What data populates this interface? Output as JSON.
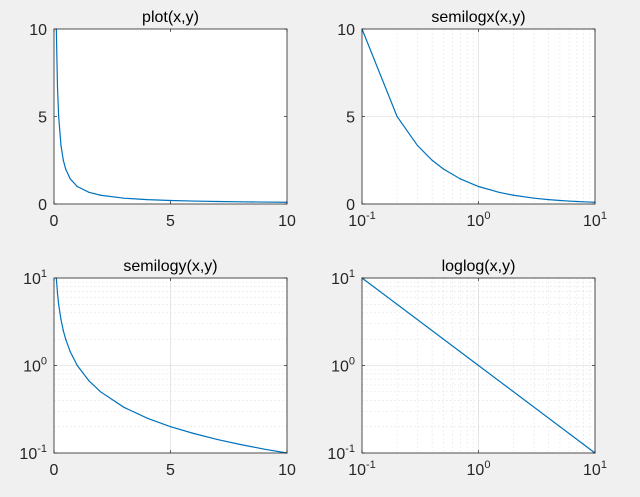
{
  "chart_data": [
    {
      "type": "line",
      "title": "plot(x,y)",
      "xscale": "linear",
      "yscale": "linear",
      "grid": false,
      "xlim": [
        0,
        10
      ],
      "ylim": [
        0,
        10
      ],
      "xticks": [
        {
          "base": "0"
        },
        {
          "base": "5"
        },
        {
          "base": "10"
        }
      ],
      "xtick_values": [
        0,
        5,
        10
      ],
      "yticks": [
        {
          "base": "0"
        },
        {
          "base": "5"
        },
        {
          "base": "10"
        }
      ],
      "ytick_values": [
        0,
        5,
        10
      ],
      "color": "#0072bd",
      "series": [
        {
          "function": "y = 1/x",
          "x": [
            0.1,
            0.15,
            0.2,
            0.3,
            0.4,
            0.5,
            0.7,
            1,
            1.5,
            2,
            3,
            4,
            5,
            6,
            7,
            8,
            9,
            10
          ],
          "y": [
            10,
            6.667,
            5,
            3.333,
            2.5,
            2,
            1.429,
            1,
            0.667,
            0.5,
            0.333,
            0.25,
            0.2,
            0.167,
            0.143,
            0.125,
            0.111,
            0.1
          ]
        }
      ]
    },
    {
      "type": "line",
      "title": "semilogx(x,y)",
      "xscale": "log",
      "yscale": "linear",
      "grid": true,
      "xlim": [
        0.1,
        10
      ],
      "ylim": [
        0,
        10
      ],
      "xticks": [
        {
          "base": "10",
          "exp": "-1"
        },
        {
          "base": "10",
          "exp": "0"
        },
        {
          "base": "10",
          "exp": "1"
        }
      ],
      "xtick_values": [
        0.1,
        1,
        10
      ],
      "yticks": [
        {
          "base": "0"
        },
        {
          "base": "5"
        },
        {
          "base": "10"
        }
      ],
      "ytick_values": [
        0,
        5,
        10
      ],
      "color": "#0072bd",
      "series": [
        {
          "function": "y = 1/x",
          "x": [
            0.1,
            0.2,
            0.3,
            0.4,
            0.5,
            0.7,
            1,
            1.5,
            2,
            3,
            4,
            5,
            6,
            7,
            8,
            9,
            10
          ],
          "y": [
            10,
            5,
            3.333,
            2.5,
            2,
            1.429,
            1,
            0.667,
            0.5,
            0.333,
            0.25,
            0.2,
            0.167,
            0.143,
            0.125,
            0.111,
            0.1
          ]
        }
      ]
    },
    {
      "type": "line",
      "title": "semilogy(x,y)",
      "xscale": "linear",
      "yscale": "log",
      "grid": true,
      "xlim": [
        0,
        10
      ],
      "ylim": [
        0.1,
        10
      ],
      "xticks": [
        {
          "base": "0"
        },
        {
          "base": "5"
        },
        {
          "base": "10"
        }
      ],
      "xtick_values": [
        0,
        5,
        10
      ],
      "yticks": [
        {
          "base": "10",
          "exp": "-1"
        },
        {
          "base": "10",
          "exp": "0"
        },
        {
          "base": "10",
          "exp": "1"
        }
      ],
      "ytick_values": [
        0.1,
        1,
        10
      ],
      "color": "#0072bd",
      "series": [
        {
          "function": "y = 1/x",
          "x": [
            0.1,
            0.15,
            0.2,
            0.3,
            0.4,
            0.5,
            0.7,
            1,
            1.5,
            2,
            3,
            4,
            5,
            6,
            7,
            8,
            9,
            10
          ],
          "y": [
            10,
            6.667,
            5,
            3.333,
            2.5,
            2,
            1.429,
            1,
            0.667,
            0.5,
            0.333,
            0.25,
            0.2,
            0.167,
            0.143,
            0.125,
            0.111,
            0.1
          ]
        }
      ]
    },
    {
      "type": "line",
      "title": "loglog(x,y)",
      "xscale": "log",
      "yscale": "log",
      "grid": true,
      "xlim": [
        0.1,
        10
      ],
      "ylim": [
        0.1,
        10
      ],
      "xticks": [
        {
          "base": "10",
          "exp": "-1"
        },
        {
          "base": "10",
          "exp": "0"
        },
        {
          "base": "10",
          "exp": "1"
        }
      ],
      "xtick_values": [
        0.1,
        1,
        10
      ],
      "yticks": [
        {
          "base": "10",
          "exp": "-1"
        },
        {
          "base": "10",
          "exp": "0"
        },
        {
          "base": "10",
          "exp": "1"
        }
      ],
      "ytick_values": [
        0.1,
        1,
        10
      ],
      "color": "#0072bd",
      "series": [
        {
          "function": "y = 1/x",
          "x": [
            0.1,
            1,
            10
          ],
          "y": [
            10,
            1,
            0.1
          ]
        }
      ]
    }
  ]
}
